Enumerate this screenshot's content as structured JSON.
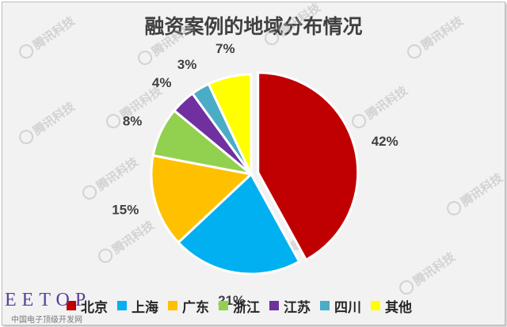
{
  "chart_data": {
    "type": "pie",
    "title": "融资案例的地域分布情况",
    "slices": [
      {
        "label": "北京",
        "value": 42,
        "display": "42%",
        "color": "#c00000"
      },
      {
        "label": "上海",
        "value": 21,
        "display": "21%",
        "color": "#00b0f0"
      },
      {
        "label": "广东",
        "value": 15,
        "display": "15%",
        "color": "#ffc000"
      },
      {
        "label": "浙江",
        "value": 8,
        "display": "8%",
        "color": "#92d050"
      },
      {
        "label": "江苏",
        "value": 4,
        "display": "4%",
        "color": "#7030a0"
      },
      {
        "label": "四川",
        "value": 3,
        "display": "3%",
        "color": "#4bacc6"
      },
      {
        "label": "其他",
        "value": 7,
        "display": "7%",
        "color": "#ffff00"
      }
    ],
    "exploded_slice": "北京",
    "legend_position": "bottom"
  },
  "watermark": "腾讯科技",
  "logo": {
    "text": "EETOP",
    "subtitle": "中国电子顶级开发网"
  }
}
